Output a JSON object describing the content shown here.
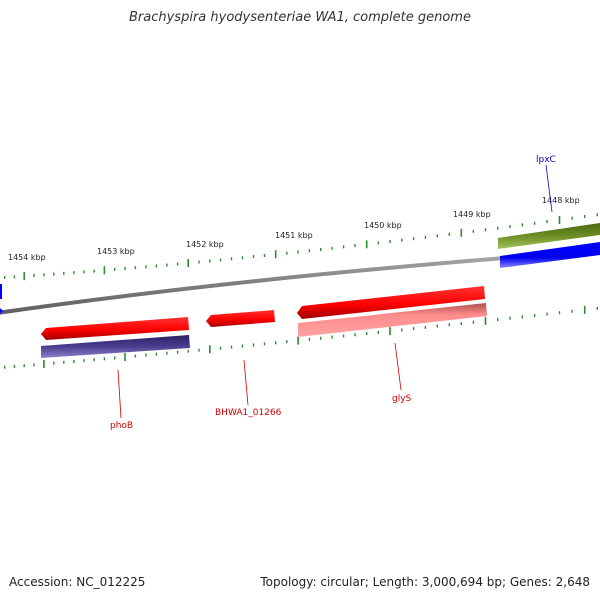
{
  "title": "Brachyspira hyodysenteriae WA1, complete genome",
  "footer": {
    "accession": "Accession: NC_012225",
    "details": "Topology: circular; Length: 3,000,694 bp; Genes: 2,648"
  },
  "scale_labels": [
    "1454 kbp",
    "1453 kbp",
    "1452 kbp",
    "1451 kbp",
    "1450 kbp",
    "1449 kbp",
    "1448 kbp"
  ],
  "gene_labels": [
    {
      "name": "phoB",
      "color": "#cc0000"
    },
    {
      "name": "BHWA1_01266",
      "color": "#cc0000"
    },
    {
      "name": "glyS",
      "color": "#cc0000"
    },
    {
      "name": "lpxC",
      "color": "#0000cc"
    }
  ],
  "colors": {
    "forward_cds": "#ff0000",
    "reverse_cds": "#ff7f7f",
    "blue_feature": "#0000ff",
    "purple_feature": "#4a3d8f",
    "olive_feature": "#6b8e23",
    "backbone": "#808080",
    "ticks": "#2e8b2e"
  }
}
